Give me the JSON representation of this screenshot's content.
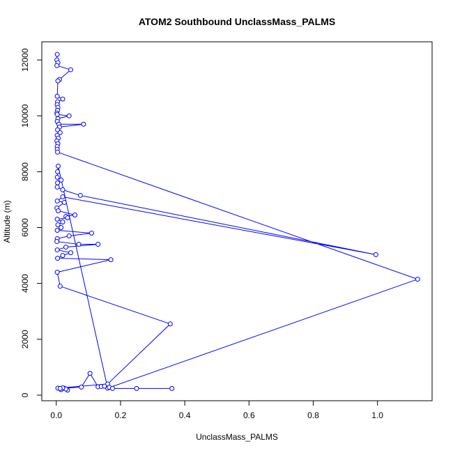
{
  "chart_data": {
    "type": "line",
    "title": "ATOM2 Southbound UnclassMass_PALMS",
    "xlabel": "UnclassMass_PALMS",
    "ylabel": "Altitude (m)",
    "xlim": [
      -0.045,
      1.17
    ],
    "ylim": [
      -200,
      12650
    ],
    "xticks": [
      "0.0",
      "0.2",
      "0.4",
      "0.6",
      "0.8",
      "1.0"
    ],
    "yticks": [
      "0",
      "2000",
      "4000",
      "6000",
      "8000",
      "10000",
      "12000"
    ],
    "grid": false,
    "legend": "none",
    "line_color": "#0000ff",
    "point_marker": "open-circle",
    "series": [
      {
        "points": [
          [
            0.003,
            12200
          ],
          [
            0.002,
            12000
          ],
          [
            0.005,
            11900
          ],
          [
            0.002,
            11800
          ],
          [
            0.045,
            11650
          ],
          [
            0.01,
            11300
          ],
          [
            0.005,
            11250
          ],
          [
            0.003,
            10700
          ],
          [
            0.02,
            10600
          ],
          [
            0.004,
            10500
          ],
          [
            0.003,
            10400
          ],
          [
            0.005,
            10300
          ],
          [
            0.004,
            10200
          ],
          [
            0.002,
            10100
          ],
          [
            0.003,
            10050
          ],
          [
            0.04,
            10000
          ],
          [
            0.005,
            9900
          ],
          [
            0.003,
            9800
          ],
          [
            0.008,
            9700
          ],
          [
            0.085,
            9700
          ],
          [
            0.01,
            9600
          ],
          [
            0.004,
            9500
          ],
          [
            0.012,
            9400
          ],
          [
            0.003,
            9300
          ],
          [
            0.006,
            9200
          ],
          [
            0.002,
            9100
          ],
          [
            0.005,
            9000
          ],
          [
            0.003,
            8900
          ],
          [
            0.003,
            8800
          ],
          [
            0.004,
            8700
          ],
          [
            1.125,
            4150
          ],
          [
            0.16,
            250
          ],
          [
            0.006,
            8200
          ],
          [
            0.004,
            8000
          ],
          [
            0.003,
            7800
          ],
          [
            0.015,
            7700
          ],
          [
            0.004,
            7600
          ],
          [
            0.003,
            7450
          ],
          [
            0.02,
            7350
          ],
          [
            0.075,
            7150
          ],
          [
            0.995,
            5030
          ],
          [
            0.02,
            7100
          ],
          [
            0.003,
            6950
          ],
          [
            0.025,
            6900
          ],
          [
            0.002,
            6700
          ],
          [
            0.006,
            6600
          ],
          [
            0.058,
            6450
          ],
          [
            0.03,
            6400
          ],
          [
            0.035,
            6350
          ],
          [
            0.003,
            6300
          ],
          [
            0.02,
            6200
          ],
          [
            0.005,
            6100
          ],
          [
            0.015,
            6000
          ],
          [
            0.003,
            5900
          ],
          [
            0.11,
            5800
          ],
          [
            0.04,
            5700
          ],
          [
            0.003,
            5600
          ],
          [
            0.002,
            5500
          ],
          [
            0.07,
            5400
          ],
          [
            0.13,
            5400
          ],
          [
            0.03,
            5300
          ],
          [
            0.003,
            5200
          ],
          [
            0.045,
            5100
          ],
          [
            0.02,
            5000
          ],
          [
            0.004,
            4900
          ],
          [
            0.17,
            4850
          ],
          [
            0.003,
            4400
          ],
          [
            0.012,
            3900
          ],
          [
            0.355,
            2550
          ],
          [
            0.16,
            400
          ],
          [
            0.005,
            250
          ],
          [
            0.025,
            250
          ],
          [
            0.015,
            200
          ],
          [
            0.035,
            180
          ],
          [
            0.03,
            220
          ],
          [
            0.02,
            260
          ],
          [
            0.012,
            240
          ],
          [
            0.078,
            290
          ],
          [
            0.105,
            780
          ],
          [
            0.13,
            300
          ],
          [
            0.14,
            310
          ],
          [
            0.15,
            320
          ],
          [
            0.165,
            280
          ],
          [
            0.175,
            240
          ],
          [
            0.25,
            240
          ],
          [
            0.36,
            240
          ]
        ]
      }
    ]
  }
}
